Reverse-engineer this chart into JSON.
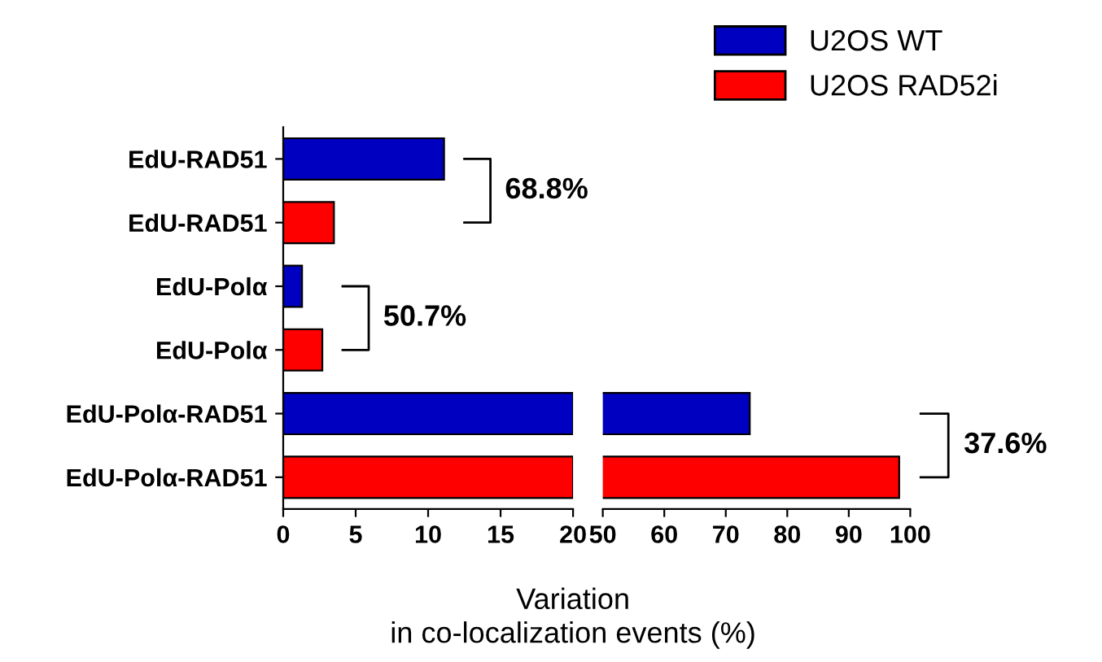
{
  "chart_data": [
    {
      "type": "bar",
      "orientation": "horizontal",
      "categories": [
        "EdU-RAD51",
        "EdU-RAD51",
        "EdU-Polα",
        "EdU-Polα",
        "EdU-Polα-RAD51",
        "EdU-Polα-RAD51"
      ],
      "series": [
        {
          "name": "U2OS WT",
          "color": "#0000c0",
          "values": [
            11.1,
            null,
            1.3,
            null,
            20,
            null
          ]
        },
        {
          "name": "U2OS RAD52i",
          "color": "#ff0000",
          "values": [
            null,
            3.5,
            null,
            2.7,
            null,
            20
          ]
        }
      ],
      "xlim": [
        0,
        20
      ],
      "xticks": [
        0,
        5,
        10,
        15,
        20
      ],
      "xlabel": "Variation\nin co-localization events (%)",
      "annotations": [
        "68.8%",
        "50.7%"
      ],
      "legend": "top right",
      "grid": false
    },
    {
      "type": "bar",
      "orientation": "horizontal",
      "series": [
        {
          "color": "#0000c0",
          "values": [
            null,
            null,
            null,
            null,
            73.9,
            null
          ]
        },
        {
          "color": "#ff0000",
          "values": [
            null,
            null,
            null,
            null,
            null,
            98.2
          ]
        }
      ],
      "xlim": [
        50,
        100
      ],
      "xticks": [
        50,
        60,
        70,
        80,
        90,
        100
      ],
      "tick_labels": "x",
      "annotations": [
        "37.6%"
      ],
      "grid": false
    }
  ]
}
